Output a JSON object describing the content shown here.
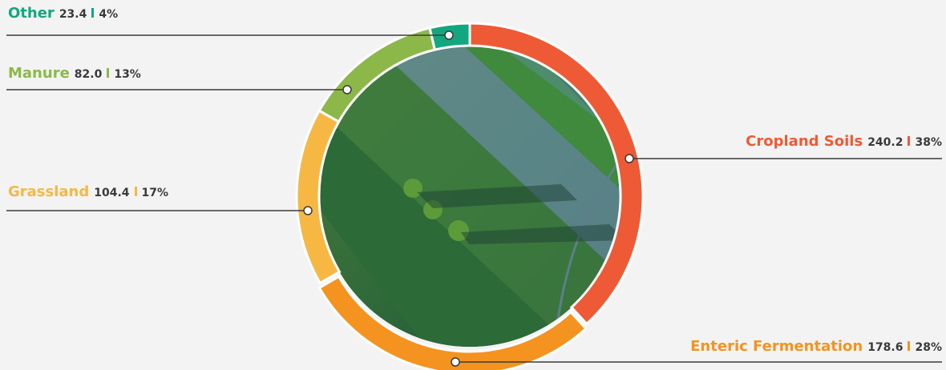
{
  "chart_data": {
    "type": "donut",
    "categories": [
      "Cropland Soils",
      "Enteric Fermentation",
      "Grassland",
      "Manure",
      "Other"
    ],
    "values": [
      240.2,
      178.6,
      104.4,
      82.0,
      23.4
    ],
    "value_labels": [
      "240.2",
      "178.6",
      "104.4",
      "82.0",
      "23.4"
    ],
    "shares": [
      38,
      28,
      17,
      13,
      4
    ],
    "share_labels": [
      "38%",
      "28%",
      "17%",
      "13%",
      "4%"
    ],
    "colors": [
      "#ee5a35",
      "#f4931f",
      "#f6b843",
      "#8cb84a",
      "#12a77f"
    ]
  }
}
